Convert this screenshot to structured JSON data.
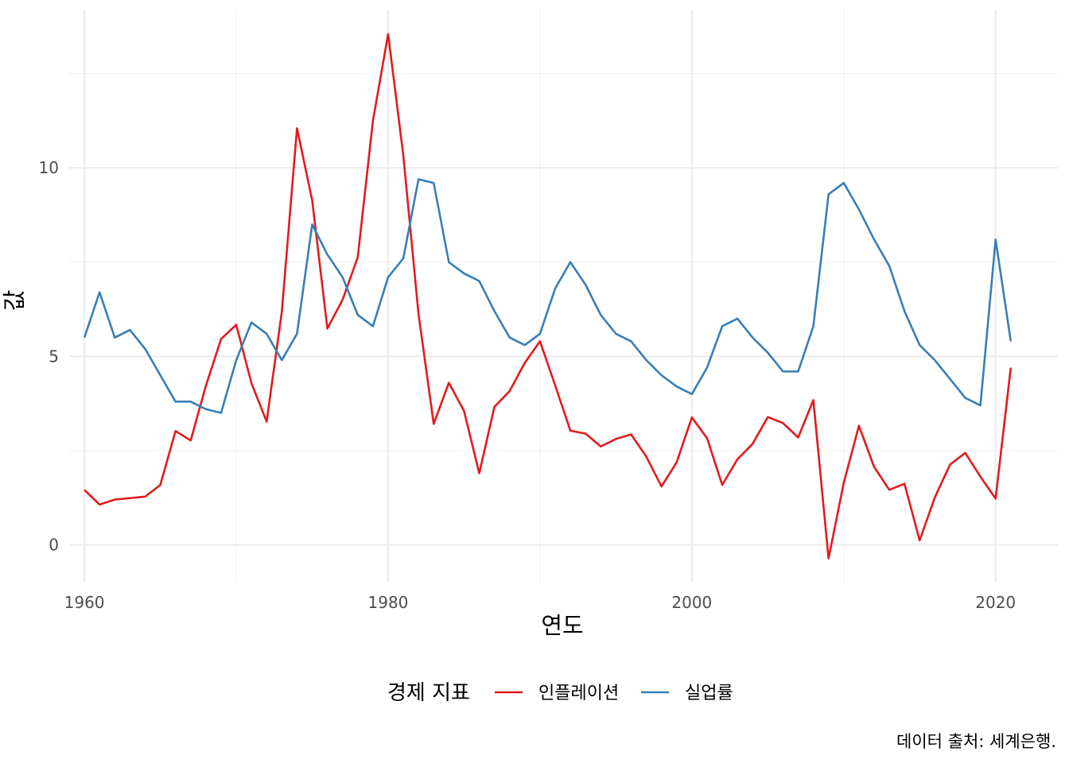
{
  "chart_data": {
    "type": "line",
    "xlabel": "연도",
    "ylabel": "값",
    "caption": "데이터 출처: 세계은행.",
    "legend": {
      "title": "경제 지표",
      "position": "bottom"
    },
    "xlim": [
      1959,
      2024.1
    ],
    "ylim": [
      -1,
      14.2
    ],
    "x_ticks": [
      1960,
      1980,
      2000,
      2020
    ],
    "y_ticks": [
      0,
      5,
      10
    ],
    "x_minor": [
      1970,
      1990,
      2010
    ],
    "y_minor": [
      2.5,
      7.5,
      12.5
    ],
    "grid": true,
    "x": [
      1960,
      1961,
      1962,
      1963,
      1964,
      1965,
      1966,
      1967,
      1968,
      1969,
      1970,
      1971,
      1972,
      1973,
      1974,
      1975,
      1976,
      1977,
      1978,
      1979,
      1980,
      1981,
      1982,
      1983,
      1984,
      1985,
      1986,
      1987,
      1988,
      1989,
      1990,
      1991,
      1992,
      1993,
      1994,
      1995,
      1996,
      1997,
      1998,
      1999,
      2000,
      2001,
      2002,
      2003,
      2004,
      2005,
      2006,
      2007,
      2008,
      2009,
      2010,
      2011,
      2012,
      2013,
      2014,
      2015,
      2016,
      2017,
      2018,
      2019,
      2020,
      2021
    ],
    "series": [
      {
        "name": "인플레이션",
        "color": "#e41a1c",
        "values": [
          1.46,
          1.07,
          1.2,
          1.24,
          1.28,
          1.59,
          3.02,
          2.77,
          4.22,
          5.46,
          5.84,
          4.29,
          3.27,
          6.18,
          11.05,
          9.14,
          5.74,
          6.5,
          7.63,
          11.25,
          13.55,
          10.33,
          6.13,
          3.21,
          4.3,
          3.55,
          1.9,
          3.66,
          4.08,
          4.83,
          5.4,
          4.23,
          3.03,
          2.95,
          2.61,
          2.81,
          2.93,
          2.34,
          1.55,
          2.19,
          3.38,
          2.83,
          1.59,
          2.27,
          2.68,
          3.39,
          3.23,
          2.85,
          3.84,
          -0.36,
          1.64,
          3.16,
          2.07,
          1.46,
          1.62,
          0.12,
          1.26,
          2.13,
          2.44,
          1.81,
          1.23,
          4.7
        ]
      },
      {
        "name": "실업률",
        "color": "#377eb8",
        "values": [
          5.5,
          6.7,
          5.5,
          5.7,
          5.2,
          4.5,
          3.8,
          3.8,
          3.6,
          3.5,
          4.9,
          5.9,
          5.6,
          4.9,
          5.6,
          8.5,
          7.7,
          7.1,
          6.1,
          5.8,
          7.1,
          7.6,
          9.7,
          9.6,
          7.5,
          7.2,
          7.0,
          6.2,
          5.5,
          5.3,
          5.6,
          6.8,
          7.5,
          6.9,
          6.1,
          5.6,
          5.4,
          4.9,
          4.5,
          4.2,
          4.0,
          4.7,
          5.8,
          6.0,
          5.5,
          5.1,
          4.6,
          4.6,
          5.8,
          9.3,
          9.6,
          8.9,
          8.1,
          7.4,
          6.2,
          5.3,
          4.9,
          4.4,
          3.9,
          3.7,
          8.1,
          5.4
        ]
      }
    ]
  }
}
